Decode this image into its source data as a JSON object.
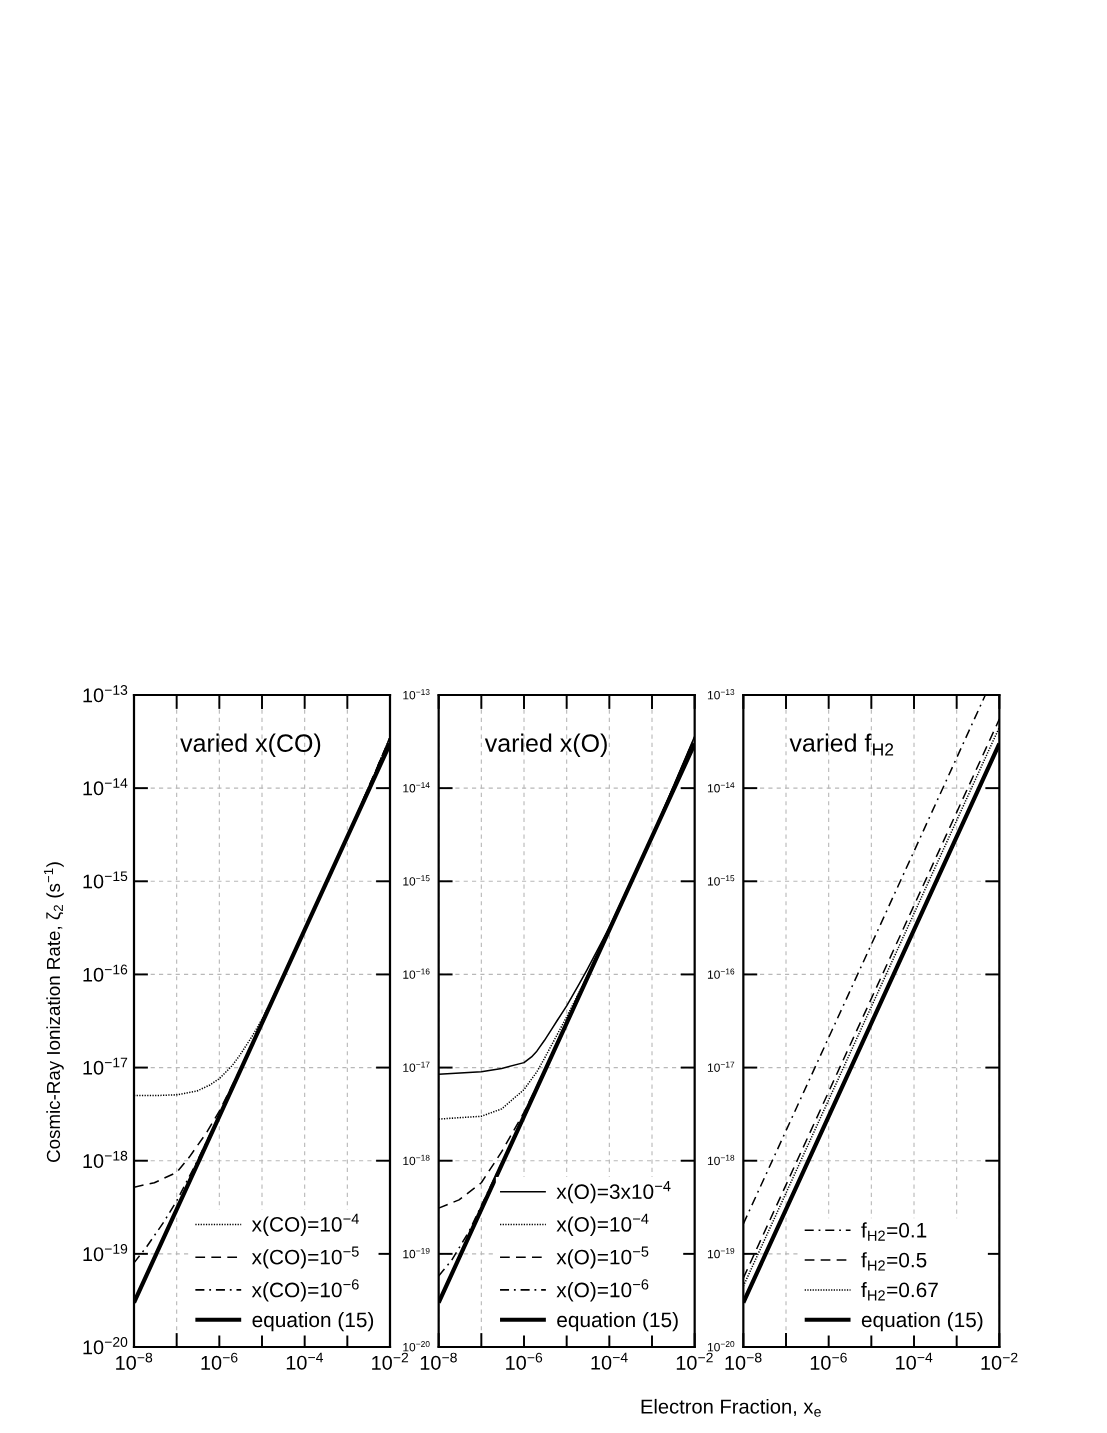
{
  "chart_data": [
    {
      "type": "line",
      "title": "varied x(CO)",
      "ylabel": "Cosmic-Ray Ionization Rate, ζ$_{2}$ (s$^{−1}$)",
      "log": "xy",
      "grid": true,
      "legend": "bottom right",
      "xlim": [
        1e-08,
        0.01
      ],
      "ylim": [
        1e-20,
        1e-13
      ],
      "xticks": [
        {
          "value": 1e-08,
          "label": "10$^{−8}$"
        },
        {
          "value": 1e-07,
          "label": null
        },
        {
          "value": 1e-06,
          "label": "10$^{−6}$"
        },
        {
          "value": 1e-05,
          "label": null
        },
        {
          "value": 0.0001,
          "label": "10$^{−4}$"
        },
        {
          "value": 0.001,
          "label": null
        },
        {
          "value": 0.01,
          "label": "10$^{−2}$"
        }
      ],
      "yticks": [
        {
          "value": 1e-20,
          "label": "10$^{−20}$"
        },
        {
          "value": 1e-19,
          "label": "10$^{−19}$"
        },
        {
          "value": 1e-18,
          "label": "10$^{−18}$"
        },
        {
          "value": 1e-17,
          "label": "10$^{−17}$"
        },
        {
          "value": 1e-16,
          "label": "10$^{−16}$"
        },
        {
          "value": 1e-15,
          "label": "10$^{−15}$"
        },
        {
          "value": 1e-14,
          "label": "10$^{−14}$"
        },
        {
          "value": 1e-13,
          "label": "10$^{−13}$"
        }
      ],
      "series": [
        {
          "name": "x(CO)=10$^{−4}$",
          "color": "#000000",
          "line_style": "dotted",
          "x": [
            1e-08,
            3e-08,
            1e-07,
            3e-07,
            6e-07,
            1e-06,
            2e-06,
            3e-06,
            6e-06,
            1e-05,
            3e-05,
            0.0001,
            0.001,
            0.01
          ],
          "values": [
            5e-18,
            5e-18,
            5.1e-18,
            5.6e-18,
            6.5e-18,
            7.6e-18,
            1.05e-17,
            1.35e-17,
            2.2e-17,
            3.3e-17,
            9.2e-17,
            3e-16,
            3e-15,
            3.5e-14
          ]
        },
        {
          "name": "x(CO)=10$^{−5}$",
          "color": "#000000",
          "line_style": "dashed",
          "x": [
            1e-08,
            3e-08,
            1e-07,
            2e-07,
            5e-07,
            1e-06,
            3e-06,
            1e-05,
            0.0001,
            0.001,
            0.01
          ],
          "values": [
            5.2e-19,
            5.8e-19,
            7.5e-19,
            1.1e-18,
            2e-18,
            3.4e-18,
            9.3e-18,
            3.05e-17,
            3e-16,
            3e-15,
            3.5e-14
          ]
        },
        {
          "name": "x(CO)=10$^{−6}$",
          "color": "#000000",
          "line_style": "dashdot",
          "x": [
            1e-08,
            2e-08,
            5e-08,
            1e-07,
            3e-07,
            1e-06,
            1e-05,
            0.0001,
            0.001,
            0.01
          ],
          "values": [
            8e-20,
            1.2e-19,
            2.2e-19,
            3.7e-19,
            9.8e-19,
            3.1e-18,
            3e-17,
            3e-16,
            3e-15,
            3.5e-14
          ]
        },
        {
          "name": "equation (15)",
          "color": "#000000",
          "line_style": "solid",
          "x": [
            1e-08,
            1e-06,
            0.0001,
            0.01
          ],
          "values": [
            3e-20,
            3e-18,
            3e-16,
            3e-14
          ]
        }
      ]
    },
    {
      "type": "line",
      "title": "varied x(O)",
      "log": "xy",
      "grid": true,
      "legend": "bottom right",
      "xlim": [
        1e-08,
        0.01
      ],
      "ylim": [
        1e-20,
        1e-13
      ],
      "xticks": [
        {
          "value": 1e-08,
          "label": "10$^{−8}$"
        },
        {
          "value": 1e-07,
          "label": null
        },
        {
          "value": 1e-06,
          "label": "10$^{−6}$"
        },
        {
          "value": 1e-05,
          "label": null
        },
        {
          "value": 0.0001,
          "label": "10$^{−4}$"
        },
        {
          "value": 0.001,
          "label": null
        },
        {
          "value": 0.01,
          "label": "10$^{−2}$"
        }
      ],
      "yticks": [
        {
          "value": 1e-20,
          "label": "10$^{−20}$"
        },
        {
          "value": 1e-19,
          "label": "10$^{−19}$"
        },
        {
          "value": 1e-18,
          "label": "10$^{−18}$"
        },
        {
          "value": 1e-17,
          "label": "10$^{−17}$"
        },
        {
          "value": 1e-16,
          "label": "10$^{−16}$"
        },
        {
          "value": 1e-15,
          "label": "10$^{−15}$"
        },
        {
          "value": 1e-14,
          "label": "10$^{−14}$"
        },
        {
          "value": 1e-13,
          "label": "10$^{−13}$"
        }
      ],
      "series": [
        {
          "name": "x(O)=3x10$^{−4}$",
          "color": "#000000",
          "line_style": "solid",
          "x": [
            1e-08,
            1e-07,
            3e-07,
            1e-06,
            1.5e-06,
            2e-06,
            3e-06,
            4.5e-06,
            6e-06,
            1e-05,
            2e-05,
            3e-05,
            0.0001,
            0.001,
            0.01
          ],
          "values": [
            8.5e-18,
            9e-18,
            9.8e-18,
            1.13e-17,
            1.3e-17,
            1.5e-17,
            1.95e-17,
            2.6e-17,
            3.2e-17,
            4.6e-17,
            8e-17,
            1.12e-16,
            3.2e-16,
            3.05e-15,
            3.6e-14
          ]
        },
        {
          "name": "x(O)=10$^{−4}$",
          "color": "#000000",
          "line_style": "dotted",
          "x": [
            1e-08,
            1e-07,
            3e-07,
            1e-06,
            2e-06,
            3e-06,
            1e-05,
            3e-05,
            0.0001,
            0.001,
            0.01
          ],
          "values": [
            2.8e-18,
            3e-18,
            3.6e-18,
            5.8e-18,
            9e-18,
            1.25e-17,
            3.5e-17,
            9.5e-17,
            3e-16,
            3e-15,
            3.5e-14
          ]
        },
        {
          "name": "x(O)=10$^{−5}$",
          "color": "#000000",
          "line_style": "dashed",
          "x": [
            1e-08,
            3e-08,
            1e-07,
            3e-07,
            1e-06,
            3e-06,
            1e-05,
            0.0001,
            0.001,
            0.01
          ],
          "values": [
            3.1e-19,
            3.8e-19,
            5.8e-19,
            1.25e-18,
            3.3e-18,
            9.2e-18,
            3e-17,
            3e-16,
            3e-15,
            3.5e-14
          ]
        },
        {
          "name": "x(O)=10$^{−6}$",
          "color": "#000000",
          "line_style": "dashdot",
          "x": [
            1e-08,
            2e-08,
            5e-08,
            1e-07,
            3e-07,
            1e-06,
            1e-05,
            0.0001,
            0.001,
            0.01
          ],
          "values": [
            5.8e-20,
            8.5e-20,
            1.7e-19,
            3.3e-19,
            9.4e-19,
            3.05e-18,
            3e-17,
            3e-16,
            3e-15,
            3.5e-14
          ]
        },
        {
          "name": "equation (15)",
          "color": "#000000",
          "line_style": "solid",
          "x": [
            1e-08,
            1e-06,
            0.0001,
            0.01
          ],
          "values": [
            3e-20,
            3e-18,
            3e-16,
            3e-14
          ]
        }
      ]
    },
    {
      "type": "line",
      "title": "varied f$_{H2}$",
      "xlabel": "Electron Fraction, x$_{e}$",
      "log": "xy",
      "grid": true,
      "legend": "bottom right",
      "xlim": [
        1e-08,
        0.01
      ],
      "ylim": [
        1e-20,
        1e-13
      ],
      "xticks": [
        {
          "value": 1e-08,
          "label": "10$^{−8}$"
        },
        {
          "value": 1e-07,
          "label": null
        },
        {
          "value": 1e-06,
          "label": "10$^{−6}$"
        },
        {
          "value": 1e-05,
          "label": null
        },
        {
          "value": 0.0001,
          "label": "10$^{−4}$"
        },
        {
          "value": 0.001,
          "label": null
        },
        {
          "value": 0.01,
          "label": "10$^{−2}$"
        }
      ],
      "yticks": [
        {
          "value": 1e-20,
          "label": "10$^{−20}$"
        },
        {
          "value": 1e-19,
          "label": "10$^{−19}$"
        },
        {
          "value": 1e-18,
          "label": "10$^{−18}$"
        },
        {
          "value": 1e-17,
          "label": "10$^{−17}$"
        },
        {
          "value": 1e-16,
          "label": "10$^{−16}$"
        },
        {
          "value": 1e-15,
          "label": "10$^{−15}$"
        },
        {
          "value": 1e-14,
          "label": "10$^{−14}$"
        },
        {
          "value": 1e-13,
          "label": "10$^{−13}$"
        }
      ],
      "series": [
        {
          "name": "f$_{H2}$=0.1",
          "color": "#000000",
          "line_style": "dashdot",
          "x": [
            1e-08,
            1e-06,
            0.0001,
            0.0047
          ],
          "values": [
            2.1e-19,
            2.1e-17,
            2.1e-15,
            1e-13
          ]
        },
        {
          "name": "f$_{H2}$=0.5",
          "color": "#000000",
          "line_style": "dashed",
          "x": [
            1e-08,
            1e-06,
            0.0001,
            0.01
          ],
          "values": [
            5.5e-20,
            5.5e-18,
            5.5e-16,
            5.5e-14
          ]
        },
        {
          "name": "f$_{H2}$=0.67",
          "color": "#000000",
          "line_style": "dotted",
          "x": [
            1e-08,
            1e-06,
            0.0001,
            0.01
          ],
          "values": [
            4.5e-20,
            4.5e-18,
            4.5e-16,
            4.5e-14
          ]
        },
        {
          "name": "equation (15)",
          "color": "#000000",
          "line_style": "solid",
          "x": [
            1e-08,
            1e-06,
            0.0001,
            0.01
          ],
          "values": [
            3e-20,
            3e-18,
            3e-16,
            3e-14
          ]
        }
      ]
    }
  ]
}
